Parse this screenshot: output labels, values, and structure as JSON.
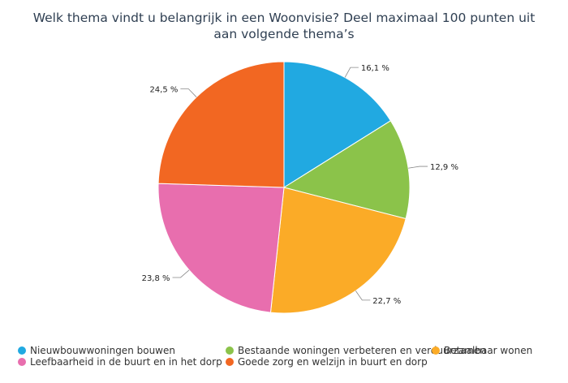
{
  "chart_data": {
    "type": "pie",
    "title_lines": [
      "Welk thema vindt u belangrijk in een Woonvisie? Deel maximaal 100 punten uit",
      "aan volgende thema’s"
    ],
    "slices": [
      {
        "name": "Nieuwbouwwoningen bouwen",
        "value": 16.1,
        "label": "16,1 %",
        "color": "#21a9e1"
      },
      {
        "name": "Bestaande woningen verbeteren en verduurzamen",
        "value": 12.9,
        "label": "12,9 %",
        "color": "#8bc34a"
      },
      {
        "name": "Betaalbaar wonen",
        "value": 22.7,
        "label": "22,7 %",
        "color": "#fbab27"
      },
      {
        "name": "Leefbaarheid in de buurt en in het dorp",
        "value": 23.8,
        "label": "23,8 %",
        "color": "#e86eae"
      },
      {
        "name": "Goede zorg en welzijn in buurt en dorp",
        "value": 24.5,
        "label": "24,5 %",
        "color": "#f26722"
      }
    ],
    "legend_placement": "bottom"
  }
}
